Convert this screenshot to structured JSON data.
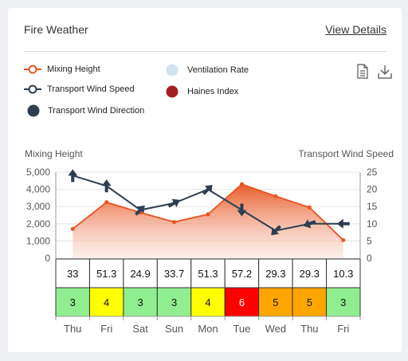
{
  "card": {
    "title": "Fire Weather",
    "details_link": "View Details"
  },
  "legend": [
    {
      "label": "Mixing Height",
      "icon": "line-circle-icon",
      "color": "#e8531f"
    },
    {
      "label": "Ventilation Rate",
      "icon": "light-blue-dot-icon",
      "color": "#cfe4ef"
    },
    {
      "label": "Transport Wind Speed",
      "icon": "line-circle-icon",
      "color": "#2d3e50"
    },
    {
      "label": "Haines Index",
      "icon": "red-dot-icon",
      "color": "#a32020"
    },
    {
      "label": "Transport Wind Direction",
      "icon": "dark-dot-icon",
      "color": "#2d3e50"
    }
  ],
  "tools": {
    "document_icon": "document-icon",
    "download_icon": "download-icon"
  },
  "chart_data": {
    "type": "line",
    "ylabel_left": "Mixing Height",
    "ylabel_right": "Transport Wind Speed",
    "categories": [
      "Thu",
      "Fri",
      "Sat",
      "Sun",
      "Mon",
      "Tue",
      "Wed",
      "Thu",
      "Fri"
    ],
    "ylim_left": [
      0,
      5000
    ],
    "yticks_left": [
      "0",
      "1,000",
      "2,000",
      "3,000",
      "4,000",
      "5,000"
    ],
    "ylim_right": [
      0,
      25
    ],
    "yticks_right": [
      "0",
      "5",
      "10",
      "15",
      "20",
      "25"
    ],
    "grid": true,
    "series": [
      {
        "name": "Mixing Height",
        "axis": "left",
        "color": "#e8531f",
        "values": [
          1700,
          3250,
          2650,
          2100,
          2550,
          4300,
          3600,
          2950,
          1050
        ]
      },
      {
        "name": "Transport Wind Speed",
        "axis": "right",
        "color": "#2d3e50",
        "values": [
          24,
          21,
          14,
          16,
          20,
          14,
          8,
          10,
          10
        ]
      },
      {
        "name": "Transport Wind Direction",
        "unit": "degrees",
        "color": "#2d3e50",
        "values": [
          0,
          0,
          45,
          60,
          45,
          180,
          225,
          250,
          270
        ]
      }
    ],
    "ventilation_rate": [
      "33",
      "51.3",
      "24.9",
      "33.7",
      "51.3",
      "57.2",
      "29.3",
      "29.3",
      "10.3"
    ],
    "haines_index": [
      3,
      4,
      3,
      3,
      4,
      6,
      5,
      5,
      3
    ],
    "haines_colors": {
      "3": "#90ee90",
      "4": "#ffff00",
      "5": "#ffa500",
      "6": "#ff0000"
    }
  }
}
